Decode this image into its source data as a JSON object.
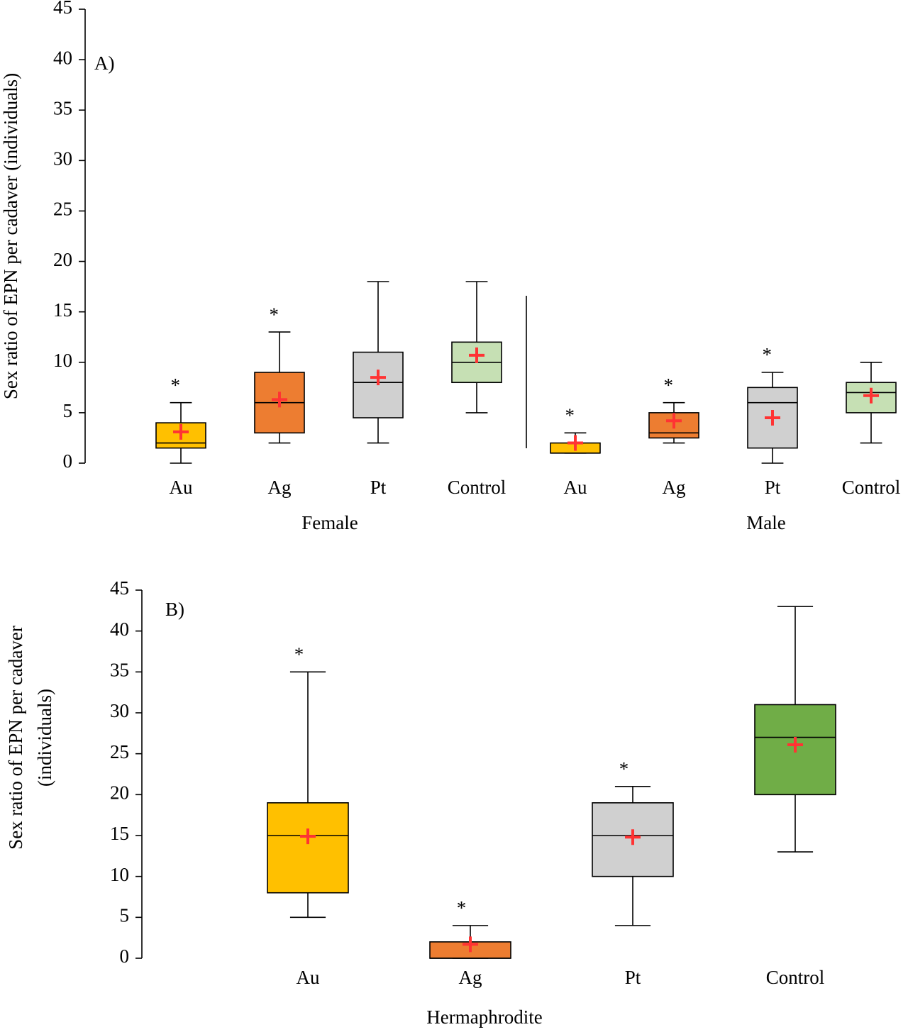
{
  "chart_data": [
    {
      "type": "box",
      "panel_label": "A)",
      "ylabel": "Sex ratio of EPN per cadaver (individuals)",
      "categories": [
        "Au",
        "Ag",
        "Pt",
        "Control",
        "Au",
        "Ag",
        "Pt",
        "Control"
      ],
      "group_labels": [
        "Female",
        "Male"
      ],
      "colors": [
        "#ffc000",
        "#ed7d31",
        "#d0d0d0",
        "#c6e0b4",
        "#ffc000",
        "#ed7d31",
        "#d0d0d0",
        "#c6e0b4"
      ],
      "min": [
        0,
        2,
        2,
        5,
        1,
        2,
        0,
        2
      ],
      "q1": [
        1.5,
        3,
        4.5,
        8,
        1,
        2.5,
        1.5,
        5
      ],
      "median": [
        2,
        6,
        8,
        10,
        1,
        3,
        6,
        7
      ],
      "q3": [
        4,
        9,
        11,
        12,
        2,
        5,
        7.5,
        8
      ],
      "max": [
        6,
        13,
        18,
        18,
        3,
        6,
        9,
        10
      ],
      "mean": [
        3.1,
        6.3,
        8.5,
        10.7,
        2,
        4.2,
        4.5,
        6.7
      ],
      "significance": [
        "*",
        "*",
        null,
        null,
        "*",
        "*",
        "*",
        null
      ],
      "mean_color": "#ff3333",
      "ylim": [
        0,
        45
      ],
      "yticks": [
        0,
        5,
        10,
        15,
        20,
        25,
        30,
        35,
        40,
        45
      ]
    },
    {
      "type": "box",
      "panel_label": "B)",
      "ylabel": [
        "Sex ratio of EPN per cadaver",
        "(individuals)"
      ],
      "categories": [
        "Au",
        "Ag",
        "Pt",
        "Control"
      ],
      "group_labels": [
        "Hermaphrodite"
      ],
      "colors": [
        "#ffc000",
        "#ed7d31",
        "#d0d0d0",
        "#70ad47"
      ],
      "min": [
        5,
        0,
        4,
        13
      ],
      "q1": [
        8,
        0,
        10,
        20
      ],
      "median": [
        15,
        0,
        15,
        27
      ],
      "q3": [
        19,
        2,
        19,
        31
      ],
      "max": [
        35,
        4,
        21,
        43
      ],
      "mean": [
        14.9,
        1.7,
        14.8,
        26.1
      ],
      "significance": [
        "*",
        "*",
        "*",
        null
      ],
      "mean_color": "#ff3333",
      "ylim": [
        0,
        45
      ],
      "yticks": [
        0,
        5,
        10,
        15,
        20,
        25,
        30,
        35,
        40,
        45
      ]
    }
  ]
}
